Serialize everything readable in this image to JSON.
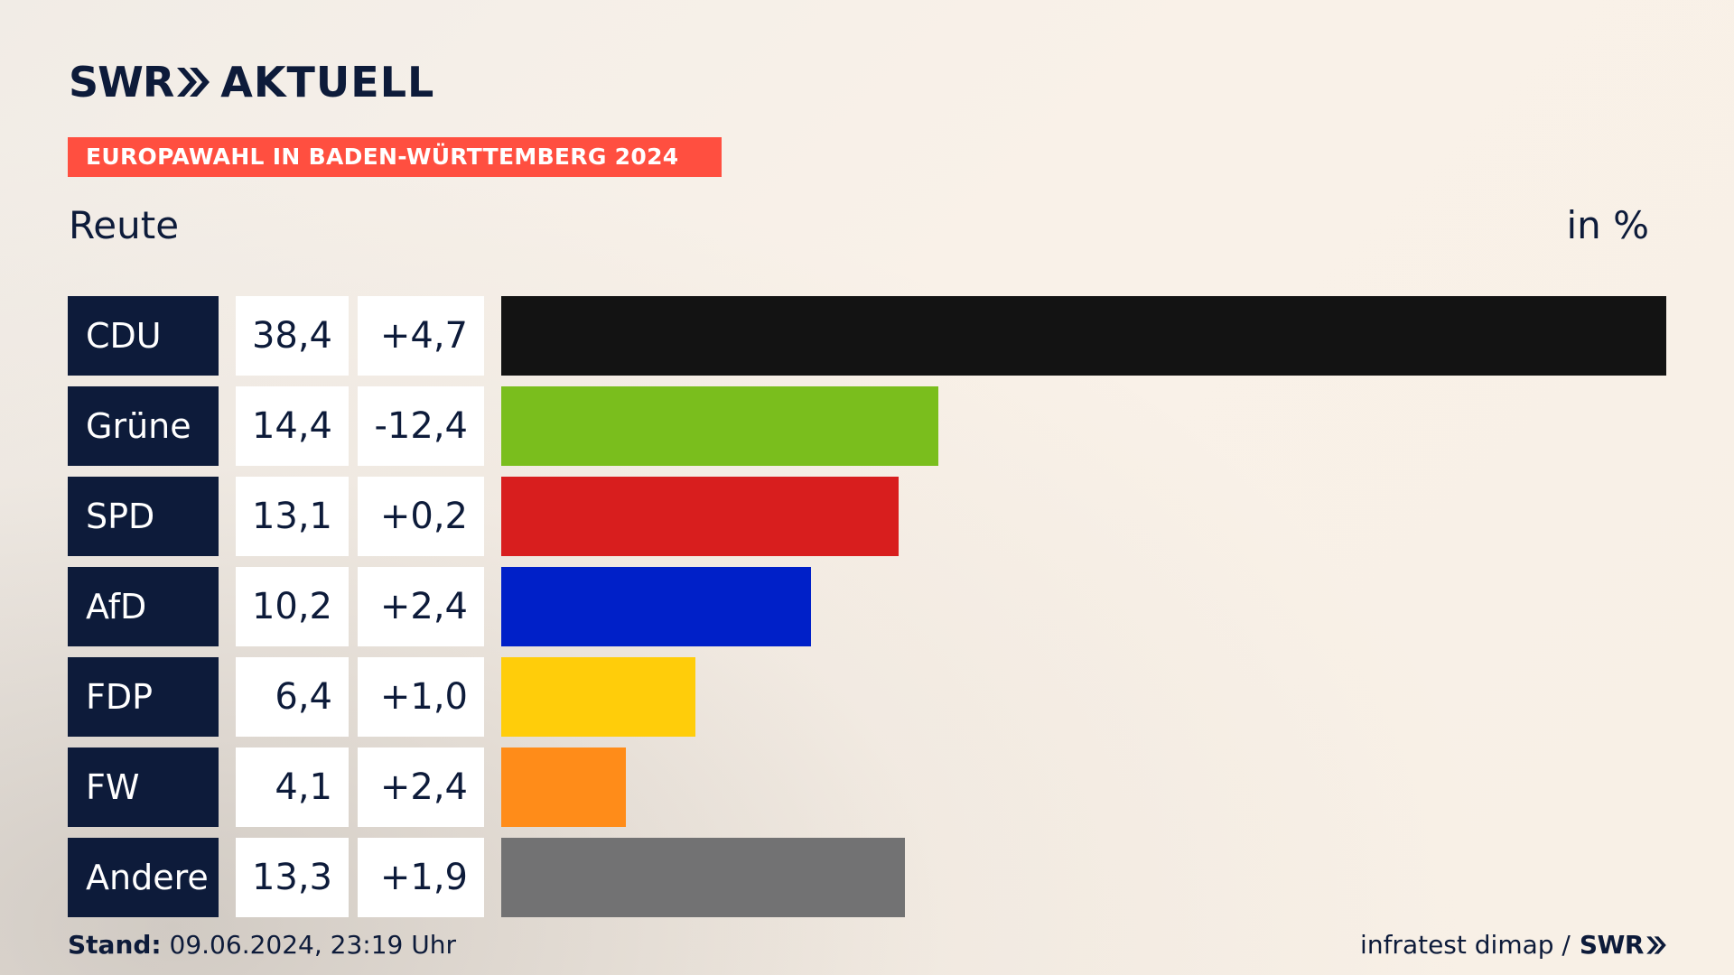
{
  "brand": {
    "logo_part1": "SWR",
    "logo_part2": "AKTUELL"
  },
  "banner": "EUROPAWAHL IN BADEN-WÜRTTEMBERG 2024",
  "location": "Reute",
  "unit": "in %",
  "chart_data": {
    "type": "bar",
    "orientation": "horizontal",
    "categories": [
      "CDU",
      "Grüne",
      "SPD",
      "AfD",
      "FDP",
      "FW",
      "Andere"
    ],
    "values": [
      38.4,
      14.4,
      13.1,
      10.2,
      6.4,
      4.1,
      13.3
    ],
    "value_labels": [
      "38,4",
      "14,4",
      "13,1",
      "10,2",
      "6,4",
      "4,1",
      "13,3"
    ],
    "changes": [
      "+4,7",
      "-12,4",
      "+0,2",
      "+2,4",
      "+1,0",
      "+2,4",
      "+1,9"
    ],
    "colors": [
      "#131313",
      "#7abe1d",
      "#d81e1e",
      "#0020c8",
      "#ffcd0a",
      "#ff8c19",
      "#727273"
    ],
    "xlim": [
      0,
      38.4
    ],
    "grid": false,
    "legend": "none"
  },
  "footer": {
    "stand_label": "Stand:",
    "stand_value": "09.06.2024, 23:19 Uhr",
    "source": "infratest dimap /",
    "source_logo": "SWR"
  }
}
